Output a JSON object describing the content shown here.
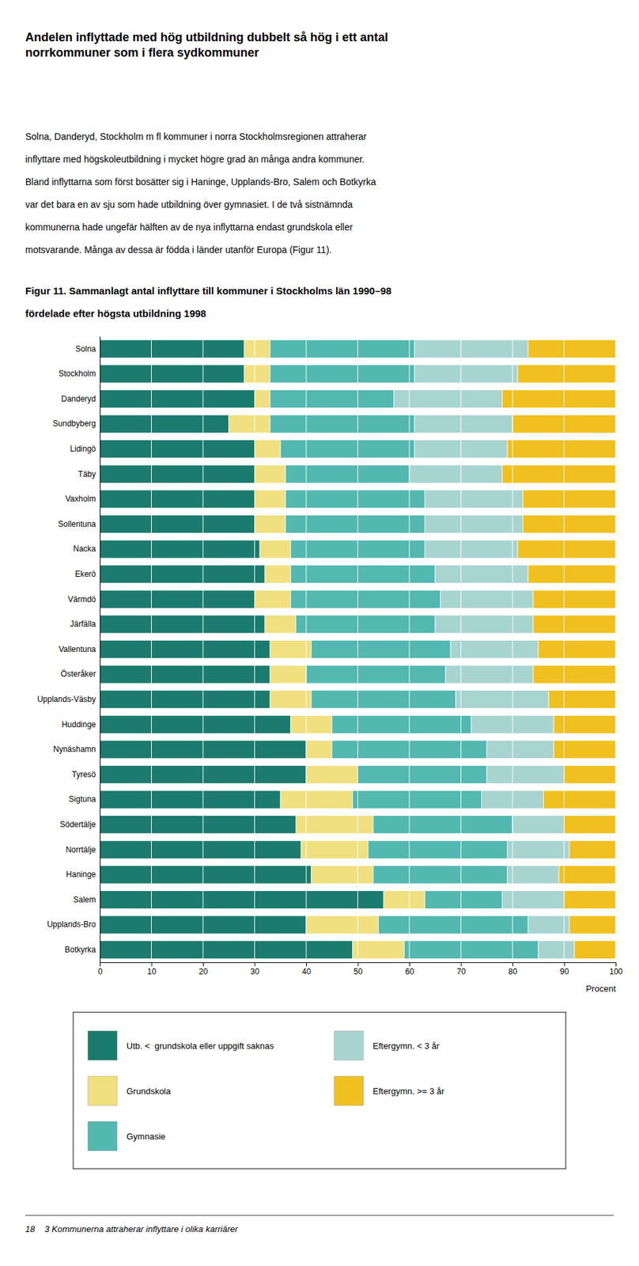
{
  "page": {
    "header": "Andelen inflyttade med hög utbildning dubbelt så hög i ett antal\nnorrkommuner som i flera sydkommuner",
    "body": [
      "Solna, Danderyd, Stockholm m fl kommuner i norra Stockholmsregionen attraherar",
      "inflyttare med högskoleutbildning i mycket högre grad än många andra kommuner.",
      "Bland inflyttarna som först bosätter sig i Haninge, Upplands-Bro, Salem och Botkyrka",
      "var det bara en av sju som hade utbildning över gymnasiet. I de två sistnämnda",
      "kommunerna hade ungefär hälften av de nya inflyttarna endast grundskola eller",
      "motsvarande. Många av dessa är födda i länder utanför Europa (Figur 11)."
    ],
    "footer": "18    3 Kommunerna attraherar inflyttare i olika karriärer"
  },
  "chart_data": {
    "type": "bar",
    "orientation": "horizontal",
    "stacked": true,
    "grid": true,
    "title": "Figur 11. Sammanlagt antal inflyttare till kommuner i Stockholms län 1990–98",
    "subtitle": "fördelade efter högsta utbildning 1998",
    "xlabel": "Procent",
    "categories": [
      "Solna",
      "Stockholm",
      "Danderyd",
      "Sundbyberg",
      "Lidingö",
      "Täby",
      "Vaxholm",
      "Sollentuna",
      "Nacka",
      "Ekerö",
      "Värmdö",
      "Järfälla",
      "Vallentuna",
      "Österåker",
      "Upplands-Väsby",
      "Huddinge",
      "Nynäshamn",
      "Tyresö",
      "Sigtuna",
      "Södertälje",
      "Norrtälje",
      "Haninge",
      "Salem",
      "Upplands-Bro",
      "Botkyrka"
    ],
    "series": [
      {
        "name": "Utb. <  grundskola eller uppgift saknas",
        "color": "#1b7b6e",
        "values": [
          28,
          28,
          30,
          25,
          30,
          30,
          30,
          30,
          31,
          32,
          30,
          32,
          33,
          33,
          33,
          37,
          40,
          40,
          35,
          38,
          39,
          41,
          55,
          40,
          49
        ]
      },
      {
        "name": "Grundskola",
        "color": "#f0e080",
        "values": [
          5,
          5,
          3,
          8,
          5,
          6,
          6,
          6,
          6,
          5,
          7,
          6,
          8,
          7,
          8,
          8,
          5,
          10,
          14,
          15,
          13,
          12,
          8,
          14,
          10
        ]
      },
      {
        "name": "Gymnasie",
        "color": "#52b8b0",
        "values": [
          28,
          28,
          24,
          28,
          26,
          24,
          27,
          27,
          26,
          28,
          29,
          27,
          27,
          27,
          28,
          27,
          30,
          25,
          25,
          27,
          27,
          26,
          15,
          29,
          26
        ]
      },
      {
        "name": "Eftergymn. < 3 år",
        "color": "#a8d4d0",
        "values": [
          22,
          20,
          21,
          19,
          18,
          18,
          19,
          19,
          18,
          18,
          18,
          19,
          17,
          17,
          18,
          16,
          13,
          15,
          12,
          10,
          12,
          10,
          12,
          8,
          7
        ]
      },
      {
        "name": "Eftergymn. >= 3 år",
        "color": "#f0c020",
        "values": [
          17,
          19,
          22,
          20,
          21,
          22,
          18,
          18,
          19,
          17,
          16,
          16,
          15,
          16,
          13,
          12,
          12,
          10,
          14,
          10,
          9,
          11,
          10,
          9,
          8
        ]
      }
    ],
    "xlim": [
      0,
      100
    ],
    "xticks": [
      0,
      10,
      20,
      30,
      40,
      50,
      60,
      70,
      80,
      90,
      100
    ]
  }
}
